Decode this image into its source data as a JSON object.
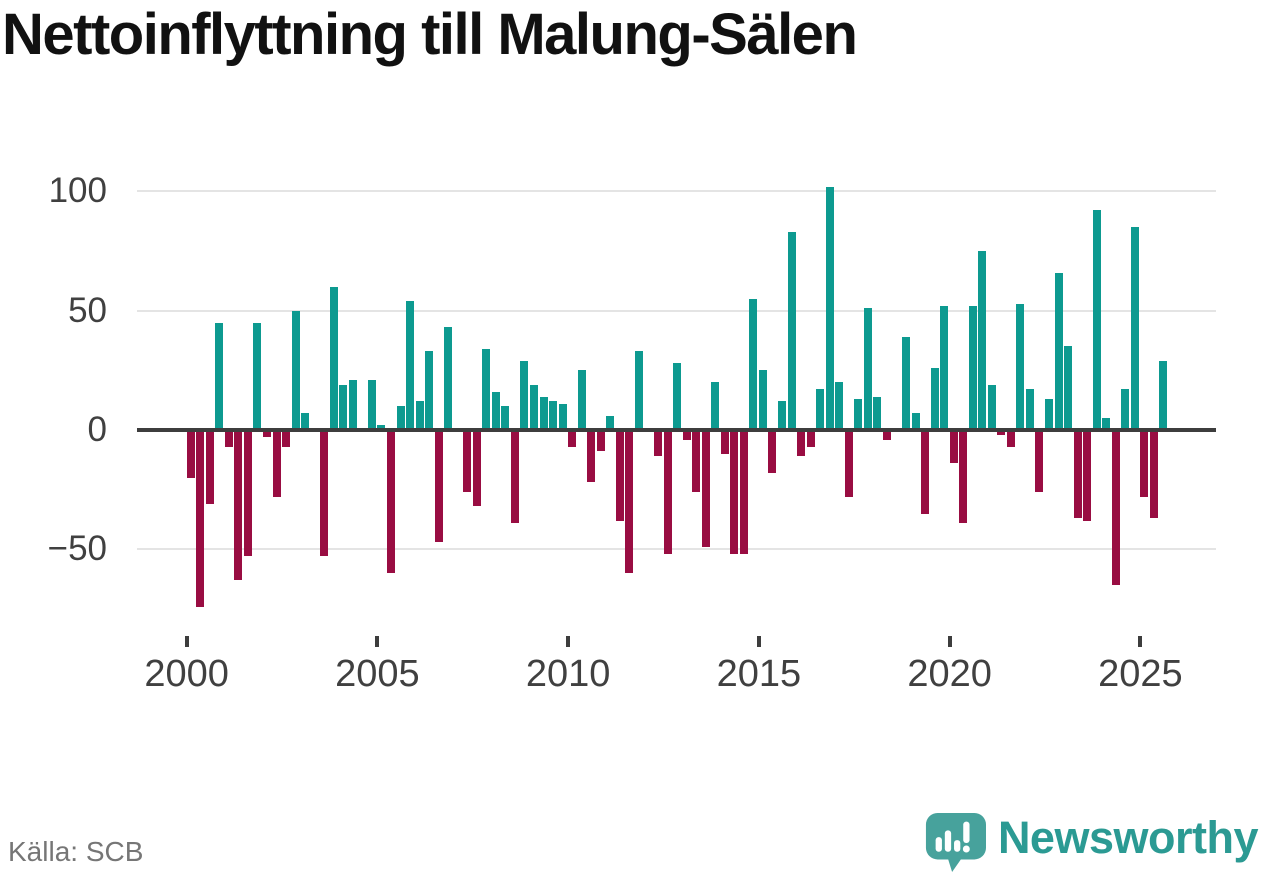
{
  "title": "Nettoinflyttning till Malung-Sälen",
  "source": "Källa: SCB",
  "logo": {
    "text": "Newsworthy",
    "icon": "newsworthy-speech-bubble-chart-icon",
    "icon_color": "#47a29c",
    "text_color": "#2b9a93"
  },
  "chart_data": {
    "type": "bar",
    "title": "Nettoinflyttning till Malung-Sälen",
    "periodicity": "quarterly",
    "grid": "horizontal gridlines on",
    "legend": "none",
    "ylim": [
      -80,
      110
    ],
    "yticks": [
      100,
      50,
      0,
      -50
    ],
    "ytick_labels": [
      "100",
      "50",
      "0",
      "−50"
    ],
    "xticks_years": [
      2000,
      2005,
      2010,
      2015,
      2020,
      2025
    ],
    "xtick_labels": [
      "2000",
      "2005",
      "2010",
      "2015",
      "2020",
      "2025"
    ],
    "colors": {
      "positive": "#0d9a90",
      "negative": "#990d42"
    },
    "series_by_year": [
      {
        "year": 2000,
        "values": [
          -20,
          -74,
          -31,
          45
        ]
      },
      {
        "year": 2001,
        "values": [
          -7,
          -63,
          -53,
          45
        ]
      },
      {
        "year": 2002,
        "values": [
          -3,
          -28,
          -7,
          50
        ]
      },
      {
        "year": 2003,
        "values": [
          7,
          0,
          -53,
          60
        ]
      },
      {
        "year": 2004,
        "values": [
          19,
          21,
          0,
          21
        ]
      },
      {
        "year": 2005,
        "values": [
          2,
          -60,
          10,
          54
        ]
      },
      {
        "year": 2006,
        "values": [
          12,
          33,
          -47,
          43
        ]
      },
      {
        "year": 2007,
        "values": [
          0,
          -26,
          -32,
          34
        ]
      },
      {
        "year": 2008,
        "values": [
          16,
          10,
          -39,
          29
        ]
      },
      {
        "year": 2009,
        "values": [
          19,
          14,
          12,
          11
        ]
      },
      {
        "year": 2010,
        "values": [
          -7,
          25,
          -22,
          -9
        ]
      },
      {
        "year": 2011,
        "values": [
          6,
          -38,
          -60,
          33
        ]
      },
      {
        "year": 2012,
        "values": [
          0,
          -11,
          -52,
          28
        ]
      },
      {
        "year": 2013,
        "values": [
          -4,
          -26,
          -49,
          20
        ]
      },
      {
        "year": 2014,
        "values": [
          -10,
          -52,
          -52,
          55
        ]
      },
      {
        "year": 2015,
        "values": [
          25,
          -18,
          12,
          83
        ]
      },
      {
        "year": 2016,
        "values": [
          -11,
          -7,
          17,
          102
        ]
      },
      {
        "year": 2017,
        "values": [
          20,
          -28,
          13,
          51
        ]
      },
      {
        "year": 2018,
        "values": [
          14,
          -4,
          0,
          39
        ]
      },
      {
        "year": 2019,
        "values": [
          7,
          -35,
          26,
          52
        ]
      },
      {
        "year": 2020,
        "values": [
          -14,
          -39,
          52,
          75
        ]
      },
      {
        "year": 2021,
        "values": [
          19,
          -2,
          -7,
          53
        ]
      },
      {
        "year": 2022,
        "values": [
          17,
          -26,
          13,
          66
        ]
      },
      {
        "year": 2023,
        "values": [
          35,
          -37,
          -38,
          92
        ]
      },
      {
        "year": 2024,
        "values": [
          5,
          -65,
          17,
          85
        ]
      },
      {
        "year": 2025,
        "values": [
          -28,
          -37,
          29
        ]
      }
    ]
  }
}
